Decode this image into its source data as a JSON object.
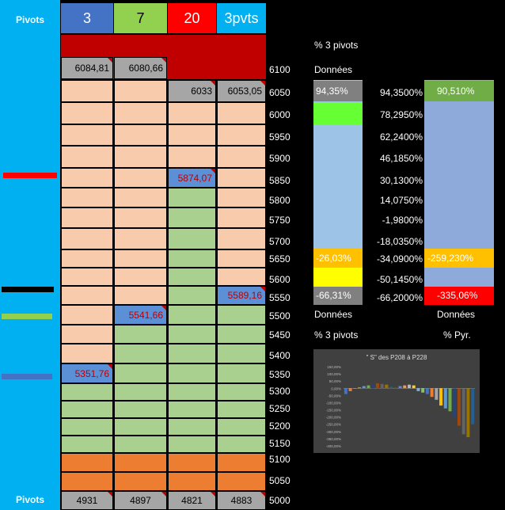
{
  "sidebar": {
    "top_label": "Pivots",
    "bottom_label": "Pivots"
  },
  "header": {
    "c1": "3",
    "c2": "7",
    "c3": "20",
    "c4": "3pvts"
  },
  "levels": [
    "6100",
    "6050",
    "6000",
    "5950",
    "5900",
    "5850",
    "5800",
    "5750",
    "5700",
    "5650",
    "5600",
    "5550",
    "5500",
    "5450",
    "5400",
    "5350",
    "5300",
    "5250",
    "5200",
    "5150",
    "5100",
    "5050",
    "5000"
  ],
  "cells": {
    "c1_top": "6084,81",
    "c2_top": "6080,66",
    "c3_6050": "6033",
    "c4_6050": "6053,05",
    "c3_5850": "5874,07",
    "c4_5550": "5589,16",
    "c2_5500": "5541,66",
    "c1_5350": "5351,76"
  },
  "bottom": {
    "c1": "4931",
    "c2": "4897",
    "c3": "4821",
    "c4": "4883"
  },
  "right_labels": {
    "pct3_top": "% 3 pivots",
    "donnees_top": "Données",
    "donnees_left": "Données",
    "pct3_bottom": "% 3 pivots",
    "donnees_right": "Données",
    "pyr": "% Pyr."
  },
  "bar1": {
    "top": "94,35%",
    "mid": "-26,03%",
    "bottom": "-66,31%"
  },
  "bar2": {
    "top": "90,510%",
    "mid": "-259,230%",
    "bottom": "-335,06%"
  },
  "pct_list": [
    "94,3500%",
    "78,2950%",
    "62,2400%",
    "46,1850%",
    "30,1300%",
    "14,0750%",
    "-1,9800%",
    "-18,0350%",
    "-34,0900%",
    "-50,1450%",
    "-66,2000%"
  ],
  "chart_data": {
    "type": "bar",
    "title": "\" S\" des P208 à P228",
    "ylim": [
      -400,
      150
    ],
    "ytick_labels": [
      "150,00%",
      "100,00%",
      "50,00%",
      "0,00%",
      "-50,00%",
      "-100,00%",
      "-150,00%",
      "-200,00%",
      "-250,00%",
      "-300,00%",
      "-350,00%",
      "-400,00%"
    ],
    "values": [
      -40,
      -20,
      0,
      5,
      15,
      20,
      25,
      35,
      30,
      25,
      10,
      5,
      15,
      20,
      25,
      20,
      -20,
      -30,
      -40,
      -60,
      -80,
      -120,
      -140,
      -160,
      -200,
      -260,
      -320,
      -340,
      -250
    ],
    "colors": [
      "#4472c4",
      "#ed7d31",
      "#a5a5a5",
      "#ffc000",
      "#5b9bd5",
      "#70ad47",
      "#264478",
      "#9e480e",
      "#636363",
      "#997300",
      "#255e91",
      "#43682b",
      "#698ed0",
      "#f1975a",
      "#b7b7b7",
      "#ffcd33",
      "#7cafdd",
      "#8cc168",
      "#4472c4",
      "#ed7d31",
      "#a5a5a5",
      "#ffc000",
      "#5b9bd5",
      "#70ad47",
      "#264478",
      "#9e480e",
      "#636363",
      "#997300",
      "#255e91"
    ]
  }
}
